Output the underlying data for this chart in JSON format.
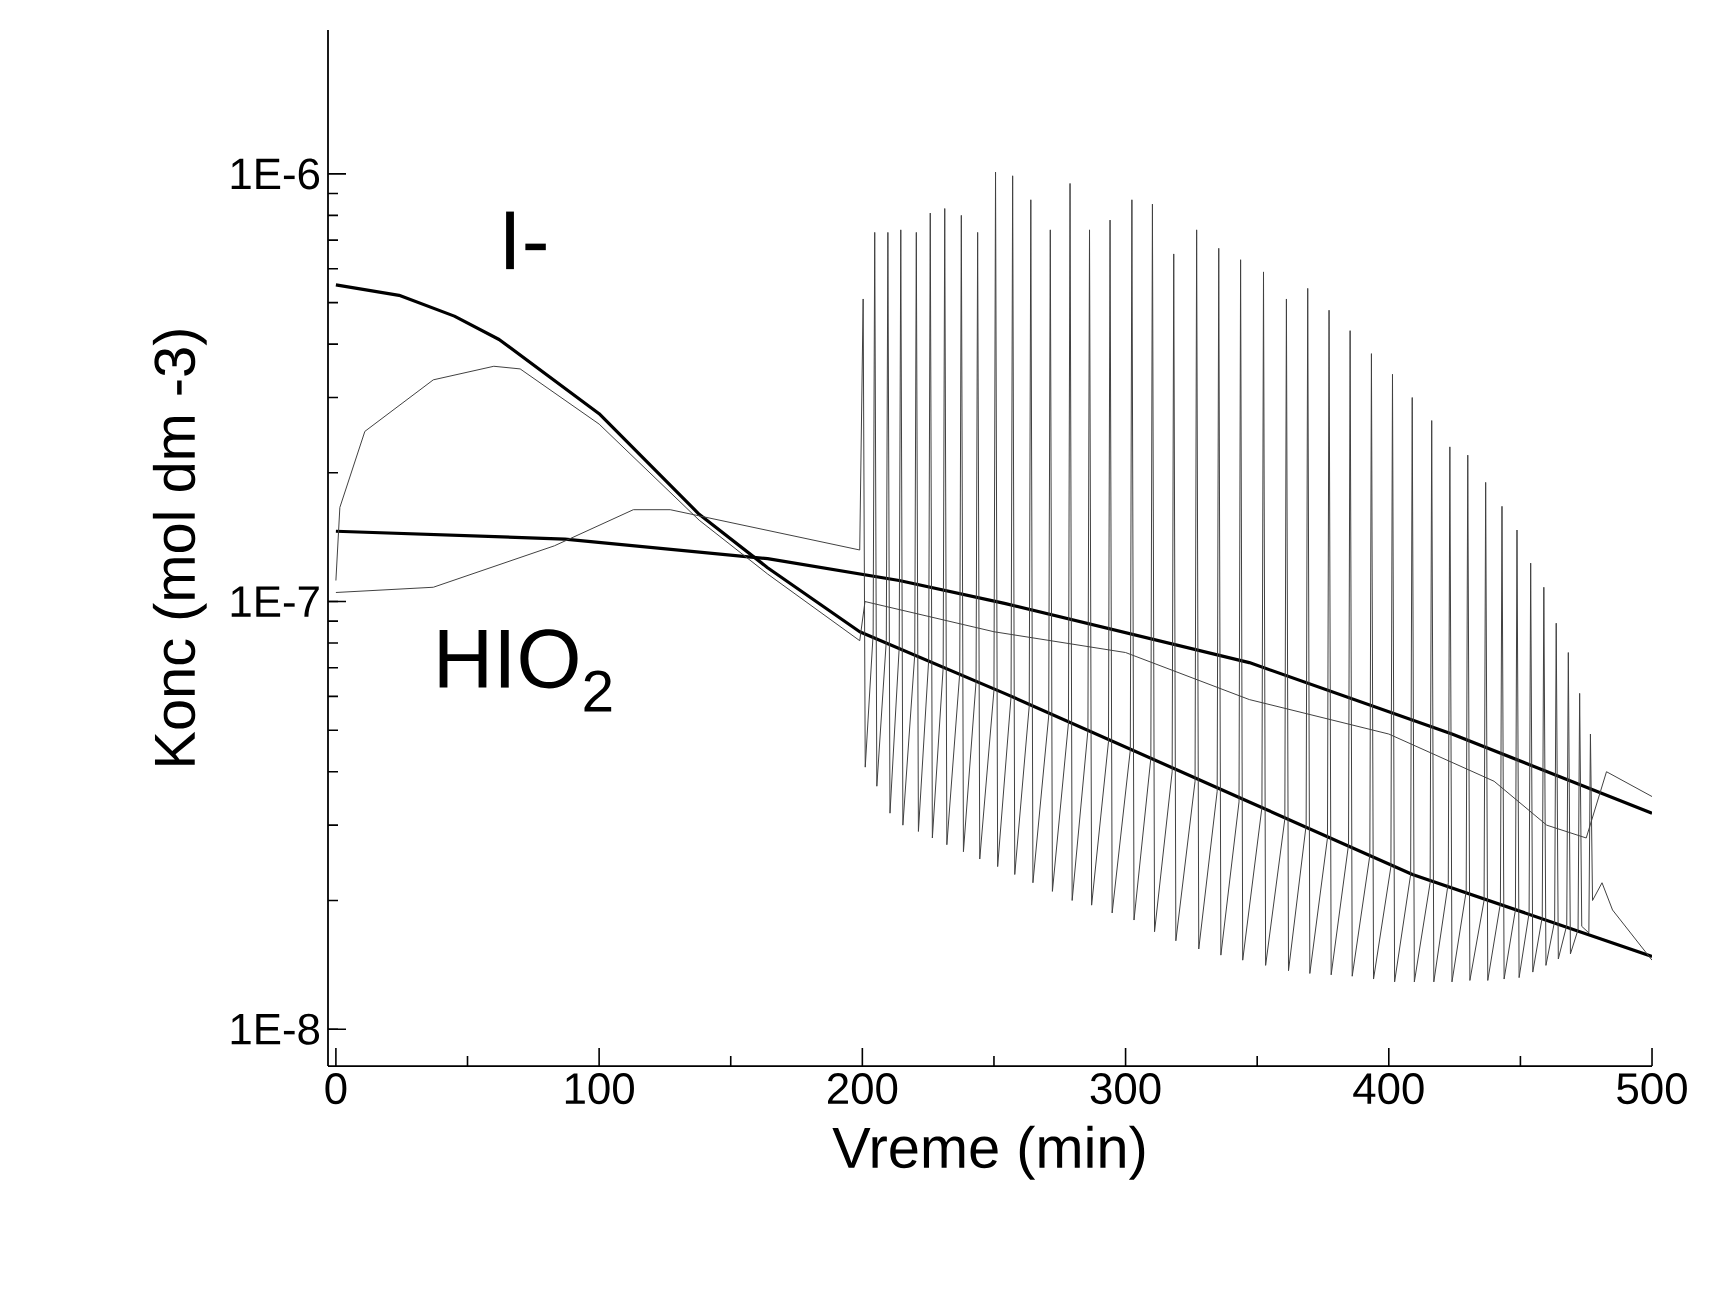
{
  "chart_data": {
    "type": "line",
    "xlabel": "Vreme (min)",
    "ylabel": "Konc (mol dm -3)",
    "log": "y",
    "xlim": [
      -3,
      500
    ],
    "ylim": [
      8.2e-09,
      2.17e-06
    ],
    "xticks": [
      0,
      100,
      200,
      300,
      400,
      500
    ],
    "yticks": [
      {
        "value": 1e-08,
        "label": "1E-8"
      },
      {
        "value": 1e-07,
        "label": "1E-7"
      },
      {
        "value": 1e-06,
        "label": "1E-6"
      }
    ],
    "annotations": [
      "I-",
      "HIO$_{2}$"
    ],
    "series": [
      {
        "color": "#000000",
        "x": [
          0,
          24,
          45,
          62,
          100,
          138,
          164,
          199,
          254,
          347,
          409,
          500
        ],
        "values": [
          5.5e-07,
          5.2e-07,
          4.65e-07,
          4.1e-07,
          2.75e-07,
          1.6e-07,
          1.2e-07,
          8.5e-08,
          6.1e-08,
          3.4e-08,
          2.3e-08,
          1.48e-08
        ]
      },
      {
        "color": "#000000",
        "x": [
          0,
          87,
          164,
          214,
          254,
          347,
          424,
          500
        ],
        "values": [
          1.46e-07,
          1.4e-07,
          1.26e-07,
          1.12e-07,
          9.9e-08,
          7.2e-08,
          4.9e-08,
          3.2e-08
        ]
      },
      {
        "color": "#404040",
        "x": [
          0,
          1.5,
          11,
          37,
          60,
          70,
          100,
          138,
          164,
          199,
          201,
          250,
          300,
          347,
          400,
          440,
          460,
          475,
          482.7,
          500
        ],
        "values": [
          1.12e-07,
          1.66e-07,
          2.5e-07,
          3.3e-07,
          3.55e-07,
          3.5e-07,
          2.6e-07,
          1.55e-07,
          1.16e-07,
          8.1e-08,
          1e-07,
          8.5e-08,
          7.6e-08,
          5.9e-08,
          4.9e-08,
          3.8e-08,
          3e-08,
          2.8e-08,
          4e-08,
          3.5e-08
        ]
      },
      {
        "color": "#404040",
        "x": [
          0,
          37,
          83,
          113,
          127,
          199,
          200.3,
          201.1,
          204.1,
          204.7,
          205.5,
          209.1,
          209.7,
          210.5,
          214.0,
          214.6,
          215.4,
          219.9,
          220.5,
          221.3,
          225.2,
          225.8,
          226.6,
          230.7,
          231.3,
          232.1,
          237.0,
          237.6,
          238.4,
          243.2,
          243.8,
          244.6,
          250.0,
          250.6,
          251.4,
          256.5,
          257.1,
          257.9,
          263.4,
          264.0,
          264.8,
          270.8,
          271.4,
          272.2,
          278.3,
          278.9,
          279.7,
          285.7,
          286.3,
          287.1,
          293.5,
          294.1,
          294.9,
          301.8,
          302.4,
          303.2,
          309.6,
          310.2,
          311.0,
          317.7,
          318.3,
          319.1,
          326.4,
          327.0,
          327.8,
          334.8,
          335.4,
          336.2,
          343.1,
          343.7,
          344.5,
          351.8,
          352.4,
          353.2,
          360.5,
          361.1,
          361.9,
          368.6,
          369.2,
          370.0,
          376.7,
          377.3,
          378.1,
          384.7,
          385.3,
          386.1,
          392.8,
          393.4,
          394.2,
          400.8,
          401.4,
          402.2,
          408.3,
          408.9,
          409.7,
          415.7,
          416.3,
          417.1,
          422.6,
          423.2,
          424.0,
          429.4,
          430.0,
          430.8,
          436.2,
          436.8,
          437.6,
          442.4,
          443.0,
          443.8,
          448.1,
          448.7,
          449.5,
          453.3,
          453.9,
          454.7,
          458.3,
          458.9,
          459.7,
          463.0,
          463.6,
          464.4,
          467.6,
          468.2,
          469.0,
          471.9,
          472.5,
          473.3,
          476.0,
          476.6,
          477.4,
          481,
          485,
          500
        ],
        "values": [
          1.05e-07,
          1.08e-07,
          1.35e-07,
          1.64e-07,
          1.64e-07,
          1.32e-07,
          5.1e-07,
          4.1e-08,
          8.4e-08,
          7.3e-07,
          3.7e-08,
          8.1e-08,
          7.3e-07,
          3.2e-08,
          7.8e-08,
          7.4e-07,
          3e-08,
          7.5e-08,
          7.3e-07,
          2.9e-08,
          7.3e-08,
          8.1e-07,
          2.8e-08,
          7e-08,
          8.3e-07,
          2.7e-08,
          6.8e-08,
          8e-07,
          2.6e-08,
          6.5e-08,
          7.3e-07,
          2.5e-08,
          6.2e-08,
          1.01e-06,
          2.4e-08,
          6e-08,
          9.9e-07,
          2.3e-08,
          5.7e-08,
          8.7e-07,
          2.2e-08,
          5.4e-08,
          7.4e-07,
          2.1e-08,
          5.2e-08,
          9.5e-07,
          2e-08,
          5e-08,
          7.4e-07,
          1.95e-08,
          4.7e-08,
          7.8e-07,
          1.87e-08,
          4.5e-08,
          8.7e-07,
          1.8e-08,
          4.3e-08,
          8.5e-07,
          1.69e-08,
          4e-08,
          6.5e-07,
          1.61e-08,
          3.8e-08,
          7.4e-07,
          1.54e-08,
          3.6e-08,
          6.7e-07,
          1.49e-08,
          3.4e-08,
          6.3e-07,
          1.45e-08,
          3.3e-08,
          5.9e-07,
          1.41e-08,
          3.1e-08,
          5.1e-07,
          1.37e-08,
          3e-08,
          5.4e-07,
          1.35e-08,
          2.8e-08,
          4.8e-07,
          1.34e-08,
          2.7e-08,
          4.3e-07,
          1.33e-08,
          2.55e-08,
          3.8e-07,
          1.31e-08,
          2.4e-08,
          3.4e-07,
          1.29e-08,
          2.3e-08,
          3e-07,
          1.29e-08,
          2.2e-08,
          2.65e-07,
          1.29e-08,
          2.2e-08,
          2.3e-07,
          1.29e-08,
          2.1e-08,
          2.2e-07,
          1.3e-08,
          2e-08,
          1.9e-07,
          1.3e-08,
          1.97e-08,
          1.67e-07,
          1.31e-08,
          1.9e-08,
          1.47e-07,
          1.32e-08,
          1.87e-08,
          1.23e-07,
          1.36e-08,
          1.83e-08,
          1.08e-07,
          1.41e-08,
          1.79e-08,
          8.9e-08,
          1.46e-08,
          1.75e-08,
          7.6e-08,
          1.5e-08,
          1.71e-08,
          6.1e-08,
          1.74e-08,
          1.68e-08,
          4.9e-08,
          2e-08,
          2.2e-08,
          1.9e-08,
          1.45e-08
        ]
      }
    ]
  }
}
